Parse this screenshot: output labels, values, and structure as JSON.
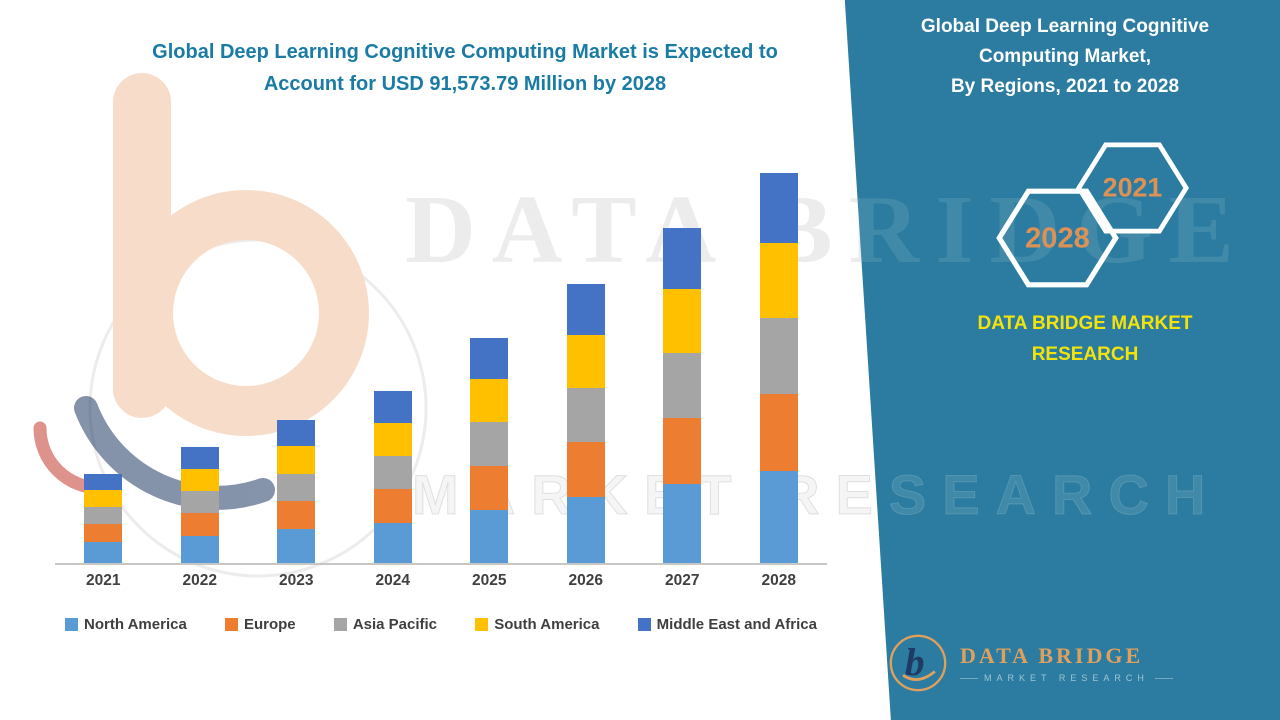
{
  "header": {
    "title": "Global Deep Learning Cognitive Computing Market is Expected to\nAccount for USD 91,573.79 Million by 2028"
  },
  "side_panel": {
    "heading": "Global Deep Learning Cognitive\nComputing Market,\nBy Regions, 2021 to 2028",
    "hexagon_years": [
      "2028",
      "2021"
    ],
    "brand_text": "DATA BRIDGE MARKET\nRESEARCH"
  },
  "watermark": {
    "line1": "DATA BRIDGE",
    "line2": "MARKET RESEARCH"
  },
  "footer_logo": {
    "letter": "b",
    "name": "DATA BRIDGE",
    "subtitle": "MARKET RESEARCH"
  },
  "colors": {
    "panel_teal": "#2b7ca0",
    "title_teal": "#1a7ca4",
    "hexagon_year_orange": "#dd9155",
    "brand_yellow": "#f4e20b"
  },
  "chart_data": {
    "type": "bar",
    "stacked": true,
    "title": "Global Deep Learning Cognitive Computing Market is Expected to Account for USD 91,573.79 Million by 2028",
    "xlabel": "",
    "ylabel": "",
    "unit": "USD Million",
    "ylim": [
      0,
      95000
    ],
    "grid": false,
    "legend_position": "bottom",
    "categories": [
      "2021",
      "2022",
      "2023",
      "2024",
      "2025",
      "2026",
      "2027",
      "2028"
    ],
    "series": [
      {
        "name": "North America",
        "color": "#5B9BD5",
        "values": [
          5000,
          6400,
          7900,
          9500,
          12400,
          15400,
          18500,
          21600
        ]
      },
      {
        "name": "Europe",
        "color": "#ED7D31",
        "values": [
          4100,
          5300,
          6600,
          7900,
          10400,
          12900,
          15500,
          18100
        ]
      },
      {
        "name": "Asia Pacific",
        "color": "#A5A5A5",
        "values": [
          4000,
          5200,
          6500,
          7800,
          10200,
          12700,
          15200,
          17800
        ]
      },
      {
        "name": "South America",
        "color": "#FFC000",
        "values": [
          4000,
          5200,
          6400,
          7700,
          10100,
          12500,
          15000,
          17500
        ]
      },
      {
        "name": "Middle East and Africa",
        "color": "#4472C4",
        "values": [
          3800,
          5000,
          6200,
          7400,
          9600,
          11900,
          14300,
          16573.79
        ]
      }
    ],
    "totals": [
      20900,
      27100,
      33600,
      40300,
      52700,
      65400,
      78500,
      91573.79
    ]
  }
}
